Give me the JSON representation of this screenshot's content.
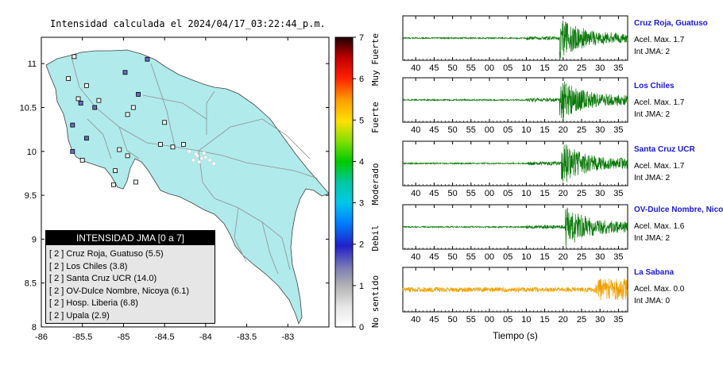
{
  "map": {
    "title": "Intensidad calculada el 2024/04/17_03:22:44_p.m.",
    "x_ticks": [
      "-86",
      "-85.5",
      "-85",
      "-84.5",
      "-84",
      "-83.5",
      "-83"
    ],
    "y_ticks": [
      "11",
      "10.5",
      "10",
      "9.5",
      "9",
      "8.5",
      "8"
    ]
  },
  "colorbar": {
    "ticks": [
      "7",
      "6",
      "5",
      "4",
      "3",
      "2",
      "1",
      "0"
    ],
    "labels": [
      "Muy Fuerte",
      "Fuerte",
      "Moderado",
      "Debil",
      "No sentido"
    ]
  },
  "legend": {
    "title": "INTENSIDAD JMA [0 a 7]",
    "rows": [
      "[ 2 ]  Cruz Roja, Guatuso (5.5)",
      "[ 2 ]  Los Chiles (3.8)",
      "[ 2 ]  Santa Cruz UCR (14.0)",
      "[ 2 ]  OV-Dulce Nombre, Nicoya (6.1)",
      "[ 2 ]  Hosp. Liberia (6.8)",
      "[ 2 ]  Upala (2.9)"
    ]
  },
  "stations": [
    {
      "name": "Cruz Roja, Guatuso",
      "acel": "Acel. Max. 1.7",
      "int": "Int JMA: 2",
      "color": "#0b7a0b"
    },
    {
      "name": "Los Chiles",
      "acel": "Acel. Max. 1.7",
      "int": "Int JMA: 2",
      "color": "#0b7a0b"
    },
    {
      "name": "Santa Cruz UCR",
      "acel": "Acel. Max. 1.7",
      "int": "Int JMA: 2",
      "color": "#0b7a0b"
    },
    {
      "name": "OV-Dulce Nombre, Nicoya",
      "acel": "Acel. Max. 1.6",
      "int": "Int JMA: 2",
      "color": "#0b7a0b"
    },
    {
      "name": "La Sabana",
      "acel": "Acel. Max. 0.0",
      "int": "Int JMA: 0",
      "color": "#f0a000"
    }
  ],
  "traces": {
    "x_ticks": [
      "40",
      "45",
      "50",
      "55",
      "00",
      "05",
      "10",
      "15",
      "20",
      "25",
      "30",
      "35"
    ],
    "xlabel": "Tiempo (s)"
  },
  "chart_data": [
    {
      "type": "scatter",
      "title": "Intensidad calculada el 2024/04/17_03:22:44_p.m.",
      "xlabel": "",
      "ylabel": "",
      "xlim": [
        -86,
        -82.5
      ],
      "ylim": [
        8,
        11.3
      ],
      "grid": false,
      "legend_position": "bottom-left",
      "series": [
        {
          "name": "Cruz Roja, Guatuso",
          "intensity": 2,
          "pga": 5.5
        },
        {
          "name": "Los Chiles",
          "intensity": 2,
          "pga": 3.8
        },
        {
          "name": "Santa Cruz UCR",
          "intensity": 2,
          "pga": 14.0
        },
        {
          "name": "OV-Dulce Nombre, Nicoya",
          "intensity": 2,
          "pga": 6.1
        },
        {
          "name": "Hosp. Liberia",
          "intensity": 2,
          "pga": 6.8
        },
        {
          "name": "Upala",
          "intensity": 2,
          "pga": 2.9
        }
      ],
      "points": [
        {
          "x": -85.6,
          "y": 11.08,
          "v": 0.4
        },
        {
          "x": -84.98,
          "y": 10.9,
          "v": 1.8
        },
        {
          "x": -84.71,
          "y": 11.05,
          "v": 1.8
        },
        {
          "x": -84.82,
          "y": 10.65,
          "v": 1.8
        },
        {
          "x": -85.52,
          "y": 10.55,
          "v": 1.8
        },
        {
          "x": -85.62,
          "y": 10.3,
          "v": 1.8
        },
        {
          "x": -85.45,
          "y": 10.15,
          "v": 1.8
        },
        {
          "x": -85.35,
          "y": 10.5,
          "v": 1.8
        },
        {
          "x": -85.62,
          "y": 10.0,
          "v": 1.8
        },
        {
          "x": -85.55,
          "y": 10.6,
          "v": 0.4
        },
        {
          "x": -85.45,
          "y": 10.75,
          "v": 0.4
        },
        {
          "x": -85.67,
          "y": 10.83,
          "v": 0.4
        },
        {
          "x": -85.3,
          "y": 10.58,
          "v": 0.4
        },
        {
          "x": -84.95,
          "y": 10.42,
          "v": 0.4
        },
        {
          "x": -84.88,
          "y": 10.5,
          "v": 0.4
        },
        {
          "x": -84.5,
          "y": 10.33,
          "v": 0.4
        },
        {
          "x": -85.5,
          "y": 9.9,
          "v": 0.4
        },
        {
          "x": -85.05,
          "y": 10.02,
          "v": 0.4
        },
        {
          "x": -84.95,
          "y": 9.95,
          "v": 0.4
        },
        {
          "x": -84.55,
          "y": 10.08,
          "v": 0.4
        },
        {
          "x": -84.4,
          "y": 10.05,
          "v": 0.4
        },
        {
          "x": -84.27,
          "y": 10.08,
          "v": 0.4
        },
        {
          "x": -85.1,
          "y": 9.78,
          "v": 0.4
        },
        {
          "x": -85.12,
          "y": 9.62,
          "v": 0.4
        },
        {
          "x": -84.85,
          "y": 9.65,
          "v": 0.4
        }
      ]
    },
    {
      "type": "line",
      "title": "Cruz Roja, Guatuso",
      "xlabel": "",
      "ylabel": "",
      "x": [
        "40",
        "45",
        "50",
        "55",
        "00",
        "05",
        "10",
        "15",
        "20",
        "25",
        "30",
        "35"
      ],
      "series": [
        {
          "name": "Cruz Roja, Guatuso",
          "onset": 19,
          "peak": 1.7,
          "color": "#0b7a0b"
        }
      ]
    },
    {
      "type": "line",
      "title": "Los Chiles",
      "xlabel": "",
      "ylabel": "",
      "x": [
        "40",
        "45",
        "50",
        "55",
        "00",
        "05",
        "10",
        "15",
        "20",
        "25",
        "30",
        "35"
      ],
      "series": [
        {
          "name": "Los Chiles",
          "onset": 19,
          "peak": 1.7,
          "color": "#0b7a0b"
        }
      ]
    },
    {
      "type": "line",
      "title": "Santa Cruz UCR",
      "xlabel": "",
      "ylabel": "",
      "x": [
        "40",
        "45",
        "50",
        "55",
        "00",
        "05",
        "10",
        "15",
        "20",
        "25",
        "30",
        "35"
      ],
      "series": [
        {
          "name": "Santa Cruz UCR",
          "onset": 19.5,
          "peak": 1.7,
          "color": "#0b7a0b"
        }
      ]
    },
    {
      "type": "line",
      "title": "OV-Dulce Nombre, Nicoya",
      "xlabel": "",
      "ylabel": "",
      "x": [
        "40",
        "45",
        "50",
        "55",
        "00",
        "05",
        "10",
        "15",
        "20",
        "25",
        "30",
        "35"
      ],
      "series": [
        {
          "name": "OV-Dulce Nombre, Nicoya",
          "onset": 20.5,
          "peak": 1.6,
          "color": "#0b7a0b"
        }
      ]
    },
    {
      "type": "line",
      "title": "La Sabana",
      "xlabel": "Tiempo (s)",
      "ylabel": "",
      "x": [
        "40",
        "45",
        "50",
        "55",
        "00",
        "05",
        "10",
        "15",
        "20",
        "25",
        "30",
        "35"
      ],
      "series": [
        {
          "name": "La Sabana",
          "onset": 28,
          "peak": 0.0,
          "color": "#f0a000"
        }
      ]
    }
  ]
}
